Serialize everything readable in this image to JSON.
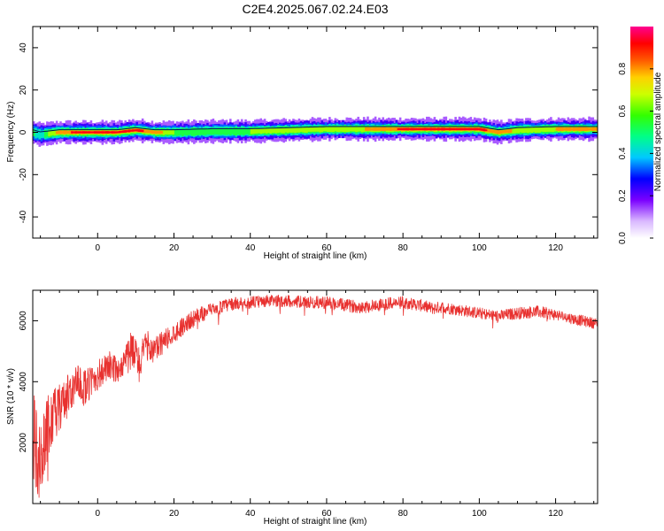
{
  "figure": {
    "title": "C2E4.2025.067.02.24.E03"
  },
  "chart_data": [
    {
      "type": "heatmap",
      "xlabel": "Height of straight line (km)",
      "ylabel": "Frequency (Hz)",
      "xlim": [
        -17,
        131
      ],
      "ylim": [
        -50,
        50
      ],
      "x_ticks": [
        0,
        20,
        40,
        60,
        80,
        100,
        120
      ],
      "x_tick_labels": [
        "0",
        "20",
        "40",
        "60",
        "80",
        "100",
        "120"
      ],
      "y_ticks": [
        -40,
        -20,
        0,
        20,
        40
      ],
      "y_tick_labels": [
        "-40",
        "-20",
        "0",
        "20",
        "40"
      ],
      "colorbar": {
        "label": "Normalized spectral amplitude",
        "range": [
          0,
          1
        ],
        "ticks": [
          0.0,
          0.2,
          0.4,
          0.6,
          0.8
        ],
        "tick_labels": [
          "0.0",
          "0.2",
          "0.4",
          "0.6",
          "0.8"
        ],
        "colormap": "rainbow (white-violet-blue-cyan-green-yellow-red-magenta)"
      },
      "ridge": {
        "description": "strong band near 0 Hz, rising slightly to about +1 Hz over 60-100 km",
        "x": [
          -17,
          -15,
          -10,
          -5,
          0,
          5,
          10,
          15,
          20,
          30,
          40,
          50,
          60,
          70,
          80,
          90,
          100,
          105,
          110,
          120,
          131
        ],
        "center_hz": [
          0,
          -1,
          0,
          0,
          0,
          0,
          1,
          0,
          0,
          0.5,
          0.5,
          1,
          1.5,
          1.5,
          1.5,
          1.5,
          1.5,
          0,
          1,
          1.5,
          1.5
        ],
        "amplitude": [
          0.5,
          0.4,
          0.85,
          0.9,
          0.95,
          0.9,
          0.9,
          0.85,
          0.6,
          0.55,
          0.6,
          0.65,
          0.7,
          0.75,
          0.9,
          0.95,
          0.9,
          0.85,
          0.7,
          0.75,
          0.8
        ]
      },
      "grid": false
    },
    {
      "type": "line",
      "xlabel": "Height of straight line (km)",
      "ylabel": "SNR (10 * v/v)",
      "xlim": [
        -17,
        131
      ],
      "ylim": [
        0,
        7000
      ],
      "x_ticks": [
        0,
        20,
        40,
        60,
        80,
        100,
        120
      ],
      "x_tick_labels": [
        "0",
        "20",
        "40",
        "60",
        "80",
        "100",
        "120"
      ],
      "y_ticks": [
        2000,
        4000,
        6000
      ],
      "y_tick_labels": [
        "2000",
        "4000",
        "6000"
      ],
      "series": [
        {
          "color": "#e8312f",
          "x": [
            -17,
            -15,
            -13,
            -11,
            -9,
            -7,
            -5,
            -3,
            -1,
            1,
            3,
            5,
            7,
            9,
            11,
            13,
            15,
            17,
            19,
            21,
            23,
            25,
            27,
            30,
            35,
            40,
            45,
            50,
            55,
            60,
            65,
            70,
            75,
            80,
            85,
            88,
            90,
            95,
            100,
            105,
            110,
            115,
            120,
            125,
            131
          ],
          "y": [
            2200,
            1300,
            2600,
            2900,
            3300,
            3700,
            3900,
            3800,
            4100,
            4300,
            4500,
            4400,
            4700,
            5000,
            4600,
            5200,
            5000,
            5300,
            5500,
            5700,
            5900,
            6050,
            6200,
            6350,
            6550,
            6600,
            6650,
            6650,
            6600,
            6600,
            6500,
            6450,
            6550,
            6600,
            6500,
            6400,
            6450,
            6350,
            6250,
            6150,
            6250,
            6300,
            6200,
            6050,
            5900
          ],
          "noise_amplitude": [
            1600,
            1400,
            1000,
            900,
            800,
            700,
            650,
            600,
            550,
            500,
            500,
            450,
            500,
            700,
            650,
            500,
            450,
            400,
            350,
            320,
            300,
            280,
            260,
            230,
            220,
            200,
            200,
            200,
            200,
            210,
            210,
            210,
            210,
            200,
            200,
            200,
            200,
            190,
            190,
            190,
            200,
            200,
            190,
            180,
            180
          ]
        }
      ],
      "grid": false
    }
  ]
}
